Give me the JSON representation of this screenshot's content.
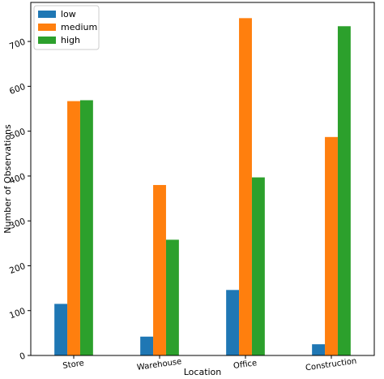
{
  "chart_data": {
    "type": "bar",
    "title": "",
    "xlabel": "Location",
    "ylabel": "Number of Observations",
    "categories": [
      "Store",
      "Warehouse",
      "Office",
      "Construction"
    ],
    "series": [
      {
        "name": "low",
        "values": [
          115,
          42,
          146,
          25
        ],
        "color": "#1f77b4"
      },
      {
        "name": "medium",
        "values": [
          567,
          380,
          752,
          487
        ],
        "color": "#ff7f0e"
      },
      {
        "name": "high",
        "values": [
          569,
          258,
          397,
          734
        ],
        "color": "#2ca02c"
      }
    ],
    "ylim": [
      0,
      787
    ],
    "yticks": [
      0,
      100,
      200,
      300,
      400,
      500,
      600,
      700
    ],
    "legend_position": "top-left",
    "grid": false
  }
}
